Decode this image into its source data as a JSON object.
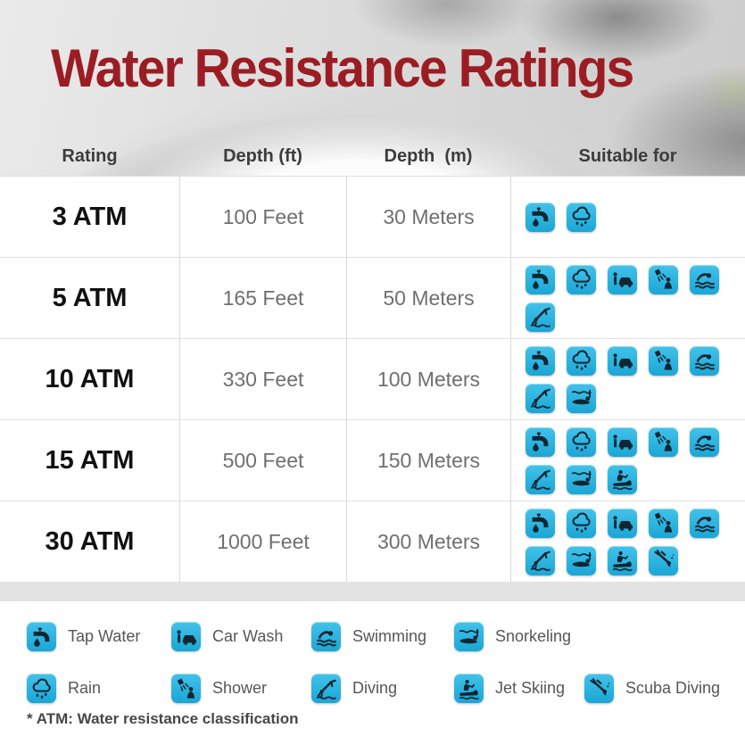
{
  "title": "Water Resistance Ratings",
  "columns": [
    "Rating",
    "Depth (ft)",
    "Depth  (m)",
    "Suitable for"
  ],
  "rows": [
    {
      "rating": "3 ATM",
      "depth_ft": "100 Feet",
      "depth_m": "30 Meters",
      "activities": [
        "tap-water",
        "rain"
      ]
    },
    {
      "rating": "5 ATM",
      "depth_ft": "165 Feet",
      "depth_m": "50 Meters",
      "activities": [
        "tap-water",
        "rain",
        "car-wash",
        "shower",
        "swimming",
        "diving"
      ]
    },
    {
      "rating": "10 ATM",
      "depth_ft": "330 Feet",
      "depth_m": "100 Meters",
      "activities": [
        "tap-water",
        "rain",
        "car-wash",
        "shower",
        "swimming",
        "diving",
        "snorkeling"
      ]
    },
    {
      "rating": "15 ATM",
      "depth_ft": "500 Feet",
      "depth_m": "150 Meters",
      "activities": [
        "tap-water",
        "rain",
        "car-wash",
        "shower",
        "swimming",
        "diving",
        "snorkeling",
        "jet-skiing"
      ]
    },
    {
      "rating": "30 ATM",
      "depth_ft": "1000 Feet",
      "depth_m": "300 Meters",
      "activities": [
        "tap-water",
        "rain",
        "car-wash",
        "shower",
        "swimming",
        "diving",
        "snorkeling",
        "jet-skiing",
        "scuba-diving"
      ]
    }
  ],
  "legend": {
    "items": [
      {
        "icon": "tap-water",
        "label": "Tap Water"
      },
      {
        "icon": "car-wash",
        "label": "Car Wash"
      },
      {
        "icon": "swimming",
        "label": "Swimming"
      },
      {
        "icon": "snorkeling",
        "label": "Snorkeling"
      },
      {
        "icon": "rain",
        "label": "Rain"
      },
      {
        "icon": "shower",
        "label": "Shower"
      },
      {
        "icon": "diving",
        "label": "Diving"
      },
      {
        "icon": "jet-skiing",
        "label": "Jet Skiing"
      },
      {
        "icon": "scuba-diving",
        "label": "Scuba Diving"
      }
    ]
  },
  "footnote": "* ATM: Water resistance classification",
  "colors": {
    "accent_red": "#9b1d23",
    "tile_cyan_top": "#43c2ea",
    "tile_cyan_bottom": "#1aa6d6",
    "icon_glyph": "#0e2631",
    "divider_band": "#e3e3e3",
    "depth_text": "#6f6f6f",
    "column_header_text": "#3c3c3c"
  },
  "chart_data": {
    "type": "table",
    "title": "Water Resistance Ratings",
    "columns": [
      "Rating",
      "Depth (ft)",
      "Depth (m)",
      "Suitable for"
    ],
    "rows": [
      [
        "3 ATM",
        "100 Feet",
        "30 Meters",
        "Tap Water, Rain"
      ],
      [
        "5 ATM",
        "165 Feet",
        "50 Meters",
        "Tap Water, Rain, Car Wash, Shower, Swimming, Diving"
      ],
      [
        "10 ATM",
        "330 Feet",
        "100 Meters",
        "Tap Water, Rain, Car Wash, Shower, Swimming, Diving, Snorkeling"
      ],
      [
        "15 ATM",
        "500 Feet",
        "150 Meters",
        "Tap Water, Rain, Car Wash, Shower, Swimming, Diving, Snorkeling, Jet Skiing"
      ],
      [
        "30 ATM",
        "1000 Feet",
        "300 Meters",
        "Tap Water, Rain, Car Wash, Shower, Swimming, Diving, Snorkeling, Jet Skiing, Scuba Diving"
      ]
    ],
    "footnote": "* ATM: Water resistance classification"
  }
}
